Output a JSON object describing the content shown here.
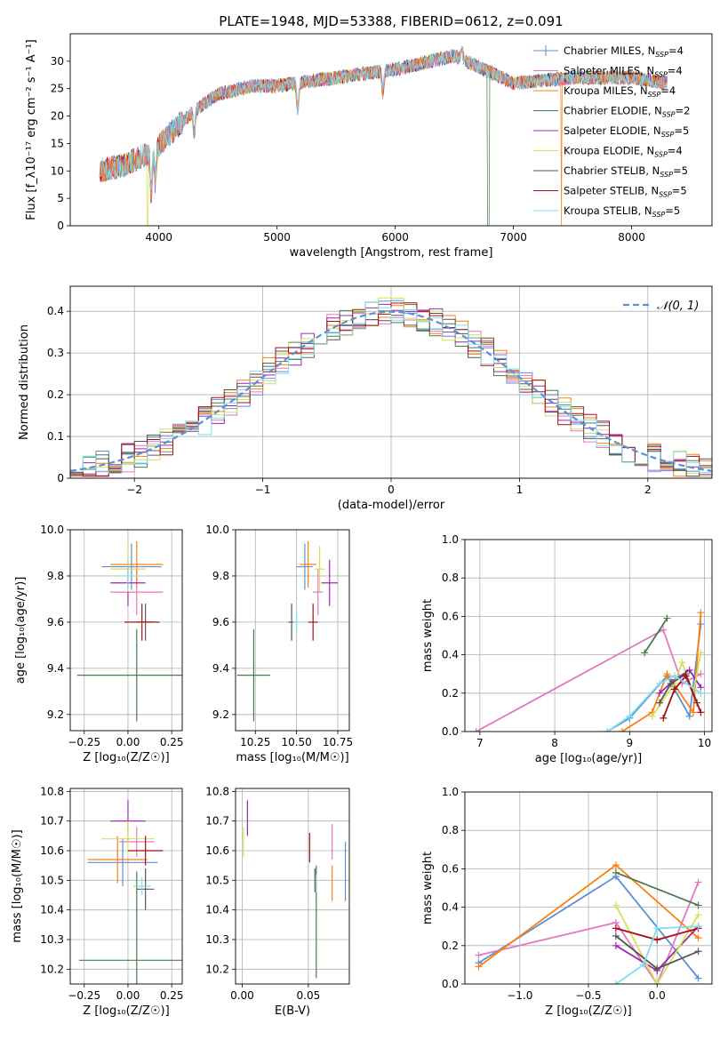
{
  "title": "PLATE=1948, MJD=53388, FIBERID=0612, z=0.091",
  "models": [
    {
      "label": "Chabrier MILES, N",
      "sub": "SSP",
      "suffix": "=4",
      "color": "#5b8fd6"
    },
    {
      "label": "Salpeter MILES, N",
      "sub": "SSP",
      "suffix": "=4",
      "color": "#e377c2"
    },
    {
      "label": "Kroupa MILES, N",
      "sub": "SSP",
      "suffix": "=4",
      "color": "#ff7f0e"
    },
    {
      "label": "Chabrier ELODIE, N",
      "sub": "SSP",
      "suffix": "=2",
      "color": "#4a7c4a"
    },
    {
      "label": "Salpeter ELODIE, N",
      "sub": "SSP",
      "suffix": "=5",
      "color": "#9c27b0"
    },
    {
      "label": "Kroupa ELODIE, N",
      "sub": "SSP",
      "suffix": "=4",
      "color": "#d4e157"
    },
    {
      "label": "Chabrier STELIB, N",
      "sub": "SSP",
      "suffix": "=5",
      "color": "#555555"
    },
    {
      "label": "Salpeter STELIB, N",
      "sub": "SSP",
      "suffix": "=5",
      "color": "#a50f15"
    },
    {
      "label": "Kroupa STELIB, N",
      "sub": "SSP",
      "suffix": "=5",
      "color": "#80deea"
    }
  ],
  "chart_data": [
    {
      "id": "spectrum",
      "type": "line",
      "xlabel": "wavelength [Angstrom, rest frame]",
      "ylabel": "Flux [f_λ10⁻¹⁷ erg cm⁻² s⁻¹ A⁻¹]",
      "xlim": [
        3250,
        8680
      ],
      "ylim": [
        0,
        35
      ],
      "xticks": [
        4000,
        5000,
        6000,
        7000,
        8000
      ],
      "yticks": [
        0,
        5,
        10,
        15,
        20,
        25,
        30
      ],
      "continuum": {
        "x": [
          3500,
          3700,
          3900,
          4000,
          4100,
          4300,
          4500,
          4800,
          5000,
          5500,
          6000,
          6500,
          7000,
          7500,
          8000,
          8300
        ],
        "y": [
          10,
          11,
          13,
          14.5,
          17,
          21,
          24,
          25.5,
          25.5,
          27,
          28.5,
          31,
          26,
          27,
          27,
          26
        ]
      },
      "features": [
        {
          "x": 3935,
          "depth": 8
        },
        {
          "x": 3970,
          "depth": 6
        },
        {
          "x": 4300,
          "depth": 4
        },
        {
          "x": 5175,
          "depth": 5
        },
        {
          "x": 5895,
          "depth": 4
        },
        {
          "x": 6563,
          "depth": -2
        }
      ]
    },
    {
      "id": "residual-hist",
      "type": "area",
      "xlabel": "(data-model)/error",
      "ylabel": "Normed distribution",
      "xlim": [
        -2.5,
        2.5
      ],
      "ylim": [
        0,
        0.46
      ],
      "xticks": [
        -2,
        -1,
        0,
        1,
        2
      ],
      "yticks": [
        0.0,
        0.1,
        0.2,
        0.3,
        0.4
      ],
      "legend": "𝒩(0, 1)",
      "bin_width": 0.1
    },
    {
      "id": "age-vs-Z",
      "type": "scatter",
      "xlabel": "Z [log₁₀(Z/Z☉)]",
      "ylabel": "age  [log₁₀(age/yr)]",
      "xlim": [
        -0.33,
        0.31
      ],
      "ylim": [
        9.13,
        10.0
      ],
      "xticks": [
        -0.25,
        0.0,
        0.25
      ],
      "yticks": [
        9.2,
        9.4,
        9.6,
        9.8,
        10.0
      ],
      "points": [
        {
          "x": 0.02,
          "xerr": 0.17,
          "y": 9.84,
          "yerr": 0.1
        },
        {
          "x": 0.05,
          "xerr": 0.15,
          "y": 9.73,
          "yerr": 0.1
        },
        {
          "x": 0.05,
          "xerr": 0.15,
          "y": 9.85,
          "yerr": 0.1
        },
        {
          "x": 0.05,
          "xerr": 0.34,
          "y": 9.37,
          "yerr": 0.2
        },
        {
          "x": 0.0,
          "xerr": 0.1,
          "y": 9.77,
          "yerr": 0.1
        },
        {
          "x": 0.0,
          "xerr": 0.1,
          "y": 9.83,
          "yerr": 0.1
        },
        {
          "x": 0.1,
          "xerr": 0.05,
          "y": 9.6,
          "yerr": 0.08
        },
        {
          "x": 0.08,
          "xerr": 0.1,
          "y": 9.6,
          "yerr": 0.08
        },
        {
          "x": 0.0,
          "xerr": 0.05,
          "y": 9.8,
          "yerr": 0.05
        }
      ]
    },
    {
      "id": "age-vs-mass",
      "type": "scatter",
      "xlabel": "mass [log₁₀(M/M☉)]",
      "ylabel": "",
      "xlim": [
        10.13,
        10.82
      ],
      "ylim": [
        9.13,
        10.0
      ],
      "xticks": [
        10.25,
        10.5,
        10.75
      ],
      "yticks": [
        9.2,
        9.4,
        9.6,
        9.8,
        10.0
      ],
      "points": [
        {
          "x": 10.55,
          "xerr": 0.05,
          "y": 9.84,
          "yerr": 0.1
        },
        {
          "x": 10.63,
          "xerr": 0.03,
          "y": 9.73,
          "yerr": 0.1
        },
        {
          "x": 10.57,
          "xerr": 0.05,
          "y": 9.85,
          "yerr": 0.1
        },
        {
          "x": 10.24,
          "xerr": 0.1,
          "y": 9.37,
          "yerr": 0.2
        },
        {
          "x": 10.7,
          "xerr": 0.05,
          "y": 9.77,
          "yerr": 0.1
        },
        {
          "x": 10.64,
          "xerr": 0.03,
          "y": 9.83,
          "yerr": 0.1
        },
        {
          "x": 10.47,
          "xerr": 0.02,
          "y": 9.6,
          "yerr": 0.08
        },
        {
          "x": 10.6,
          "xerr": 0.03,
          "y": 9.6,
          "yerr": 0.08
        },
        {
          "x": 10.5,
          "xerr": 0.02,
          "y": 9.6,
          "yerr": 0.05
        }
      ]
    },
    {
      "id": "weight-vs-age",
      "type": "line",
      "xlabel": "age  [log₁₀(age/yr)]",
      "ylabel": "mass weight",
      "xlim": [
        6.8,
        10.1
      ],
      "ylim": [
        0,
        1
      ],
      "xticks": [
        7,
        8,
        9,
        10
      ],
      "yticks": [
        0.0,
        0.2,
        0.4,
        0.6,
        0.8,
        1.0
      ],
      "series": [
        {
          "x": [
            8.7,
            9.0,
            9.5,
            9.8,
            9.95
          ],
          "y": [
            0.0,
            0.07,
            0.29,
            0.08,
            0.56
          ]
        },
        {
          "x": [
            6.95,
            9.45,
            9.7,
            9.95
          ],
          "y": [
            0.0,
            0.53,
            0.25,
            0.3
          ]
        },
        {
          "x": [
            8.9,
            9.3,
            9.5,
            9.85,
            9.95
          ],
          "y": [
            0.0,
            0.1,
            0.3,
            0.1,
            0.62
          ]
        },
        {
          "x": [
            9.2,
            9.5
          ],
          "y": [
            0.41,
            0.59
          ]
        },
        {
          "x": [
            9.4,
            9.6,
            9.8,
            9.95
          ],
          "y": [
            0.2,
            0.27,
            0.32,
            0.23
          ]
        },
        {
          "x": [
            9.3,
            9.6,
            9.7,
            9.85,
            9.95
          ],
          "y": [
            0.08,
            0.25,
            0.36,
            0.2,
            0.41
          ]
        },
        {
          "x": [
            9.4,
            9.55,
            9.75,
            9.9
          ],
          "y": [
            0.15,
            0.25,
            0.3,
            0.15
          ]
        },
        {
          "x": [
            9.45,
            9.6,
            9.75,
            9.95
          ],
          "y": [
            0.07,
            0.22,
            0.29,
            0.1
          ]
        },
        {
          "x": [
            8.7,
            9.0,
            9.4,
            9.6,
            9.95
          ],
          "y": [
            0.0,
            0.08,
            0.25,
            0.29,
            0.2
          ]
        }
      ]
    },
    {
      "id": "mass-vs-Z",
      "type": "scatter",
      "xlabel": "Z [log₁₀(Z/Z☉)]",
      "ylabel": "mass [log₁₀(M/M☉)]",
      "xlim": [
        -0.33,
        0.31
      ],
      "ylim": [
        10.15,
        10.81
      ],
      "xticks": [
        -0.25,
        0.0,
        0.25
      ],
      "yticks": [
        10.2,
        10.3,
        10.4,
        10.5,
        10.6,
        10.7,
        10.8
      ],
      "points": [
        {
          "x": -0.03,
          "xerr": 0.2,
          "y": 10.56,
          "yerr": 0.08
        },
        {
          "x": 0.05,
          "xerr": 0.1,
          "y": 10.63,
          "yerr": 0.05
        },
        {
          "x": -0.06,
          "xerr": 0.17,
          "y": 10.57,
          "yerr": 0.08
        },
        {
          "x": 0.05,
          "xerr": 0.33,
          "y": 10.23,
          "yerr": 0.3
        },
        {
          "x": 0.0,
          "xerr": 0.1,
          "y": 10.7,
          "yerr": 0.07
        },
        {
          "x": 0.0,
          "xerr": 0.15,
          "y": 10.64,
          "yerr": 0.06
        },
        {
          "x": 0.1,
          "xerr": 0.05,
          "y": 10.47,
          "yerr": 0.07
        },
        {
          "x": 0.1,
          "xerr": 0.1,
          "y": 10.6,
          "yerr": 0.05
        },
        {
          "x": 0.08,
          "xerr": 0.05,
          "y": 10.48,
          "yerr": 0.03
        }
      ]
    },
    {
      "id": "mass-vs-ebv",
      "type": "scatter",
      "xlabel": "E(B-V)",
      "ylabel": "",
      "xlim": [
        -0.005,
        0.081
      ],
      "ylim": [
        10.15,
        10.81
      ],
      "xticks": [
        0.0,
        0.05
      ],
      "yticks": [
        10.2,
        10.3,
        10.4,
        10.5,
        10.6,
        10.7,
        10.8
      ],
      "points": [
        {
          "x": 0.078,
          "xerr": 0,
          "y": 10.53,
          "yerr": 0.1
        },
        {
          "x": 0.068,
          "xerr": 0,
          "y": 10.63,
          "yerr": 0.06
        },
        {
          "x": 0.068,
          "xerr": 0,
          "y": 10.49,
          "yerr": 0.06
        },
        {
          "x": 0.056,
          "xerr": 0,
          "y": 10.36,
          "yerr": 0.19
        },
        {
          "x": 0.004,
          "xerr": 0,
          "y": 10.71,
          "yerr": 0.06
        },
        {
          "x": 0.001,
          "xerr": 0,
          "y": 10.63,
          "yerr": 0.05
        },
        {
          "x": 0.055,
          "xerr": 0,
          "y": 10.5,
          "yerr": 0.04
        },
        {
          "x": 0.051,
          "xerr": 0,
          "y": 10.61,
          "yerr": 0.05
        },
        {
          "x": 0.056,
          "xerr": 0,
          "y": 10.49,
          "yerr": 0.03
        }
      ]
    },
    {
      "id": "weight-vs-Z",
      "type": "line",
      "xlabel": "Z [log₁₀(Z/Z☉)]",
      "ylabel": "mass weight",
      "xlim": [
        -1.4,
        0.4
      ],
      "ylim": [
        0,
        1
      ],
      "xticks": [
        -1.0,
        -0.5,
        0.0
      ],
      "yticks": [
        0.0,
        0.2,
        0.4,
        0.6,
        0.8,
        1.0
      ],
      "series": [
        {
          "x": [
            -1.3,
            -0.3,
            0.3
          ],
          "y": [
            0.11,
            0.56,
            0.03
          ]
        },
        {
          "x": [
            -1.3,
            -0.3,
            0.0,
            0.3
          ],
          "y": [
            0.15,
            0.32,
            0.0,
            0.53
          ]
        },
        {
          "x": [
            -1.3,
            -0.3,
            0.3
          ],
          "y": [
            0.09,
            0.62,
            0.24
          ]
        },
        {
          "x": [
            -0.3,
            0.3
          ],
          "y": [
            0.58,
            0.41
          ]
        },
        {
          "x": [
            -0.3,
            0.0,
            0.3
          ],
          "y": [
            0.2,
            0.07,
            0.3
          ]
        },
        {
          "x": [
            -0.3,
            0.0,
            0.3
          ],
          "y": [
            0.41,
            0.0,
            0.36
          ]
        },
        {
          "x": [
            -0.3,
            0.0,
            0.3
          ],
          "y": [
            0.25,
            0.08,
            0.17
          ]
        },
        {
          "x": [
            -0.3,
            0.0,
            0.3
          ],
          "y": [
            0.29,
            0.23,
            0.29
          ]
        },
        {
          "x": [
            -0.3,
            -0.1,
            0.0,
            0.3
          ],
          "y": [
            0.0,
            0.1,
            0.29,
            0.3
          ]
        }
      ]
    }
  ]
}
